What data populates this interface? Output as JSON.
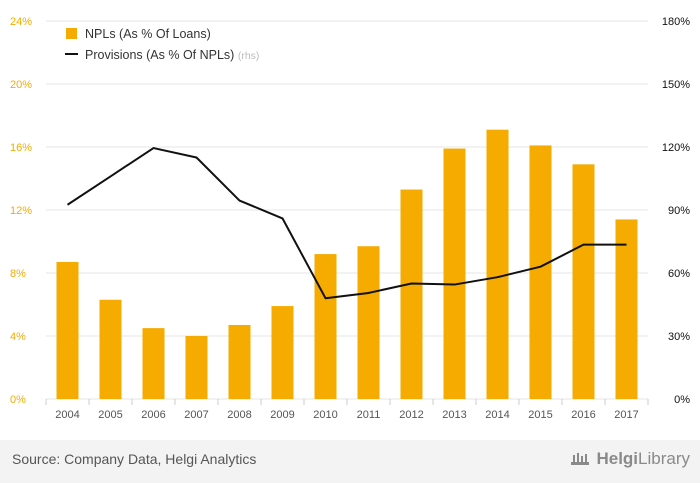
{
  "chart_data": {
    "type": "bar+line",
    "categories": [
      "2004",
      "2005",
      "2006",
      "2007",
      "2008",
      "2009",
      "2010",
      "2011",
      "2012",
      "2013",
      "2014",
      "2015",
      "2016",
      "2017"
    ],
    "series": [
      {
        "name": "NPLs (As % Of Loans)",
        "type": "bar",
        "axis": "left",
        "color": "#f5ab00",
        "values": [
          8.7,
          6.3,
          4.5,
          4.0,
          4.7,
          5.9,
          9.2,
          9.7,
          13.3,
          15.9,
          17.1,
          16.1,
          14.9,
          11.4
        ]
      },
      {
        "name": "Provisions (As % Of NPLs)",
        "name_suffix": "(rhs)",
        "type": "line",
        "axis": "right",
        "color": "#111111",
        "values": [
          92.5,
          106,
          119.5,
          115,
          94.5,
          86,
          48,
          50.5,
          55,
          54.5,
          58,
          63,
          73.5,
          73.5
        ]
      }
    ],
    "y_left": {
      "ylim": [
        0,
        24
      ],
      "ticks": [
        "0%",
        "4%",
        "8%",
        "12%",
        "16%",
        "20%",
        "24%"
      ],
      "color": "#f5ab00"
    },
    "y_right": {
      "ylim": [
        0,
        180
      ],
      "ticks": [
        "0%",
        "30%",
        "60%",
        "90%",
        "120%",
        "150%",
        "180%"
      ],
      "color": "#111111"
    },
    "grid": true,
    "legend": "top-left"
  },
  "footer": {
    "source": "Source: Company Data, Helgi Analytics",
    "brand_left": "Helgi",
    "brand_right": "Library",
    "brand_icon": "helgi-library-logo-icon"
  }
}
